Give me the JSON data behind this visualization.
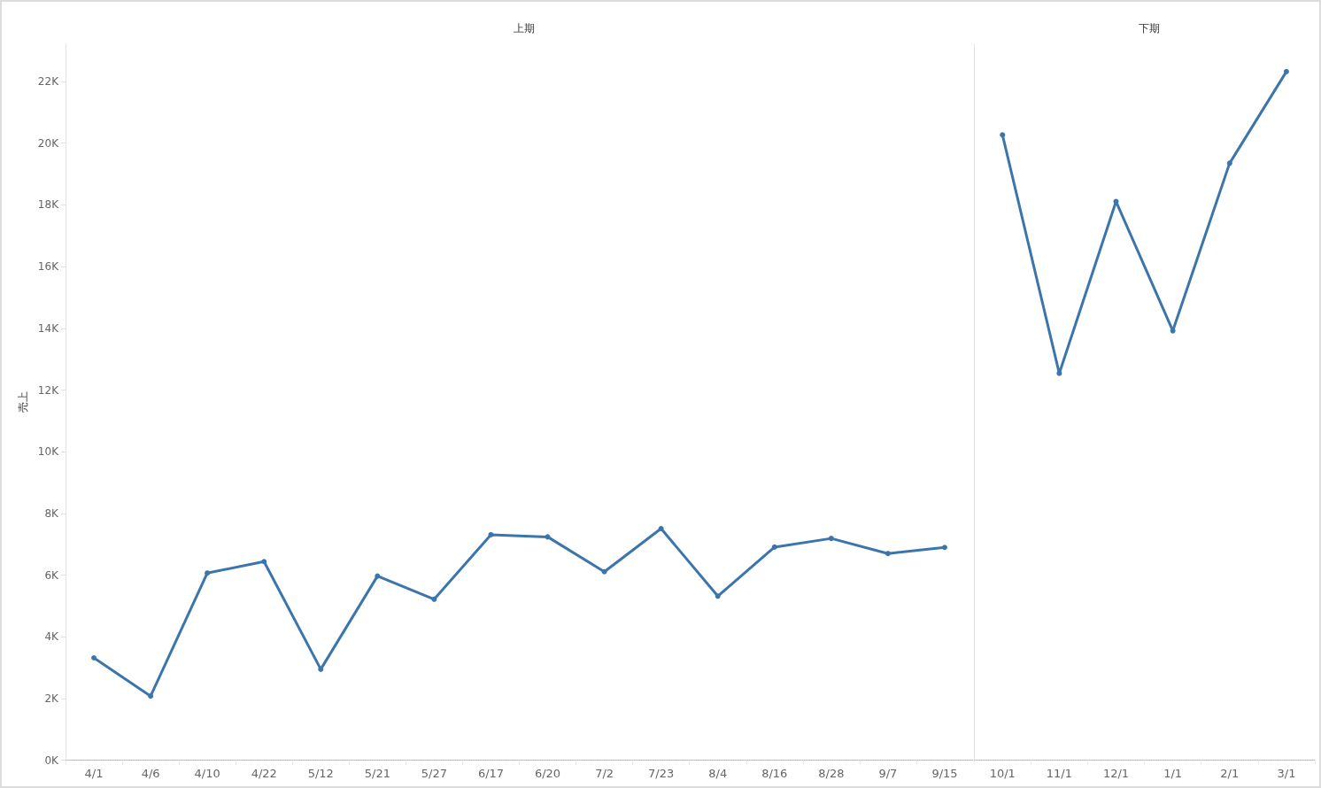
{
  "chart_data": [
    {
      "type": "line",
      "title": "上期",
      "ylabel": "売上",
      "categories": [
        "4/1",
        "4/6",
        "4/10",
        "4/22",
        "5/12",
        "5/21",
        "5/27",
        "6/17",
        "6/20",
        "7/2",
        "7/23",
        "8/4",
        "8/16",
        "8/28",
        "9/7",
        "9/15"
      ],
      "values": [
        3320,
        2080,
        6070,
        6440,
        2950,
        5970,
        5220,
        7310,
        7240,
        6110,
        7510,
        5320,
        6910,
        7190,
        6700,
        6900
      ],
      "color": "#3c75ab",
      "ylim": [
        0,
        23200
      ],
      "yticks": [
        {
          "value": 0,
          "label": "0K"
        },
        {
          "value": 2000,
          "label": "2K"
        },
        {
          "value": 4000,
          "label": "4K"
        },
        {
          "value": 6000,
          "label": "6K"
        },
        {
          "value": 8000,
          "label": "8K"
        },
        {
          "value": 10000,
          "label": "10K"
        },
        {
          "value": 12000,
          "label": "12K"
        },
        {
          "value": 14000,
          "label": "14K"
        },
        {
          "value": 16000,
          "label": "16K"
        },
        {
          "value": 18000,
          "label": "18K"
        },
        {
          "value": 20000,
          "label": "20K"
        },
        {
          "value": 22000,
          "label": "22K"
        }
      ],
      "grid": false,
      "marker": "circle",
      "line_style": "solid"
    },
    {
      "type": "line",
      "title": "下期",
      "categories": [
        "10/1",
        "11/1",
        "12/1",
        "1/1",
        "2/1",
        "3/1"
      ],
      "values": [
        20270,
        12540,
        18110,
        13920,
        19350,
        22320
      ],
      "color": "#3c75ab",
      "ylim": [
        0,
        23200
      ],
      "tick_labels": "x",
      "grid": false,
      "marker": "circle",
      "line_style": "solid"
    }
  ]
}
